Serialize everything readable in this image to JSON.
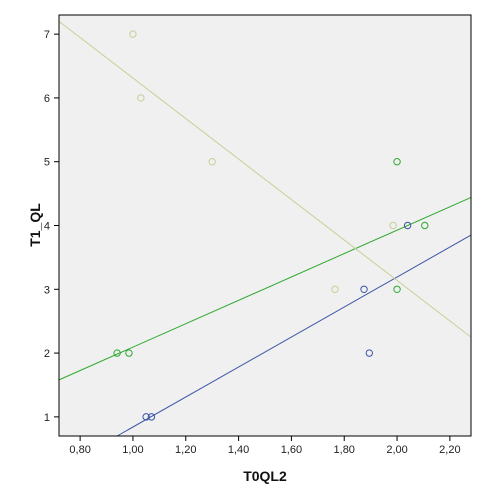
{
  "chart_data": {
    "type": "scatter",
    "title": "",
    "xlabel": "T0QL2",
    "ylabel": "T1_QL",
    "xlim": [
      0.72,
      2.28
    ],
    "ylim": [
      0.7,
      7.3
    ],
    "x_ticks": [
      0.8,
      1.0,
      1.2,
      1.4,
      1.6,
      1.8,
      2.0,
      2.2
    ],
    "x_tick_labels": [
      "0,80",
      "1,00",
      "1,20",
      "1,40",
      "1,60",
      "1,80",
      "2,00",
      "2,20"
    ],
    "y_ticks": [
      1,
      2,
      3,
      4,
      5,
      6,
      7
    ],
    "y_tick_labels": [
      "1",
      "2",
      "3",
      "4",
      "5",
      "6",
      "7"
    ],
    "grid": false,
    "legend": false,
    "background": "#f0f0f0",
    "series": [
      {
        "color": "#3b55a6",
        "x": [
          1.05,
          1.07,
          1.875,
          1.895,
          2.04
        ],
        "y": [
          1,
          1,
          3,
          2,
          4
        ],
        "fit_line": [
          [
            0.94,
            0.7
          ],
          [
            2.28,
            3.85
          ]
        ]
      },
      {
        "color": "#2ea82e",
        "x": [
          0.94,
          0.985,
          2.0,
          2.0,
          2.105
        ],
        "y": [
          2,
          2,
          5,
          3,
          4
        ],
        "fit_line": [
          [
            0.72,
            1.58
          ],
          [
            2.28,
            4.44
          ]
        ]
      },
      {
        "color": "#c8cf96",
        "x": [
          1.0,
          1.03,
          1.3,
          1.765,
          1.985
        ],
        "y": [
          7,
          6,
          5,
          3,
          4
        ],
        "fit_line": [
          [
            0.72,
            7.2
          ],
          [
            2.28,
            2.25
          ]
        ]
      }
    ]
  }
}
